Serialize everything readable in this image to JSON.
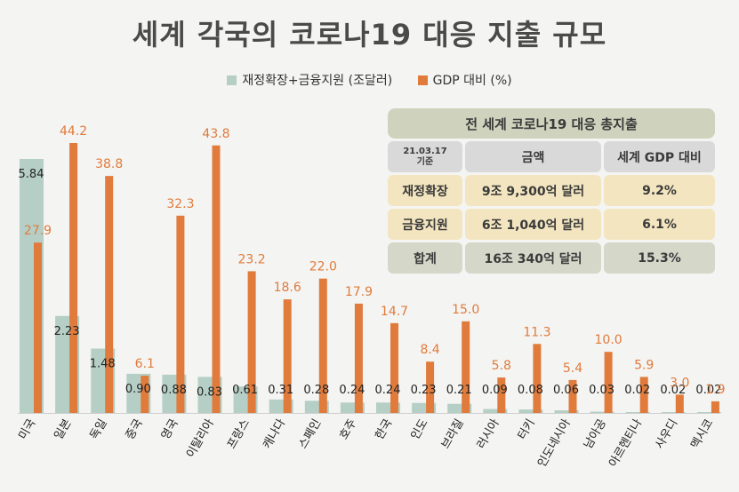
{
  "title": "세계 각국의 코로나19 대응 지출 규모",
  "colors": {
    "fiscal": "#b5cfc6",
    "gdp": "#e07b3c",
    "gdp_label": "#e07b3c",
    "fiscal_label": "#222222",
    "title": "#4a4a4a"
  },
  "chart_data": {
    "type": "bar",
    "categories": [
      "미국",
      "일본",
      "독일",
      "중국",
      "영국",
      "이탈리아",
      "프랑스",
      "캐나다",
      "스페인",
      "호주",
      "한국",
      "인도",
      "브라질",
      "러시아",
      "터키",
      "인도네시아",
      "남아공",
      "아르헨티나",
      "사우디",
      "멕시코"
    ],
    "series": [
      {
        "name": "재정확장+금융지원 (조달러)",
        "values": [
          5.84,
          2.23,
          1.48,
          0.9,
          0.88,
          0.83,
          0.61,
          0.31,
          0.28,
          0.24,
          0.24,
          0.23,
          0.21,
          0.09,
          0.08,
          0.06,
          0.03,
          0.02,
          0.02,
          0.02
        ],
        "labels": [
          "5.84",
          "2.23",
          "1.48",
          "0.90",
          "0.88",
          "0.83",
          "0.61",
          "0.31",
          "0.28",
          "0.24",
          "0.24",
          "0.23",
          "0.21",
          "0.09",
          "0.08",
          "0.06",
          "0.03",
          "0.02",
          "0.02",
          "0.02"
        ]
      },
      {
        "name": "GDP 대비 (%)",
        "values": [
          27.9,
          44.2,
          38.8,
          6.1,
          32.3,
          43.8,
          23.2,
          18.6,
          22.0,
          17.9,
          14.7,
          8.4,
          15.0,
          5.8,
          11.3,
          5.4,
          10.0,
          5.9,
          3.0,
          1.9
        ],
        "labels": [
          "27.9",
          "44.2",
          "38.8",
          "6.1",
          "32.3",
          "43.8",
          "23.2",
          "18.6",
          "22.0",
          "17.9",
          "14.7",
          "8.4",
          "15.0",
          "5.8",
          "11.3",
          "5.4",
          "10.0",
          "5.9",
          "3.0",
          "1.9"
        ]
      }
    ],
    "legend_position": "top-center",
    "grid": false
  },
  "summary_table": {
    "title": "전 세계 코로나19 대응 총지출",
    "date": "21.03.17\n기준",
    "headers": [
      "금액",
      "세계 GDP 대비"
    ],
    "rows": [
      {
        "label": "재정확장",
        "amount": "9조 9,300억 달러",
        "ratio": "9.2%"
      },
      {
        "label": "금융지원",
        "amount": "6조 1,040억 달러",
        "ratio": "6.1%"
      },
      {
        "label": "합계",
        "amount": "16조 340억 달러",
        "ratio": "15.3%"
      }
    ]
  }
}
